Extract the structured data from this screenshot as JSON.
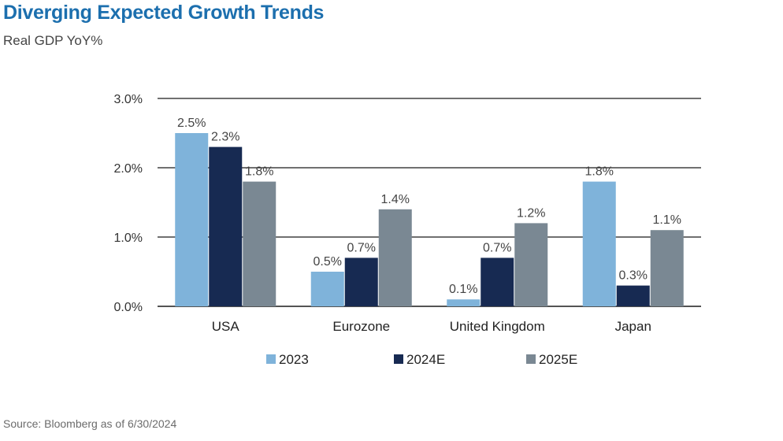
{
  "header": {
    "title": "Diverging Expected Growth Trends",
    "subtitle": "Real GDP YoY%"
  },
  "footer": {
    "source": "Source: Bloomberg as of 6/30/2024"
  },
  "chart_data": {
    "type": "bar",
    "title": "Diverging Expected Growth Trends",
    "subtitle": "Real GDP YoY%",
    "categories": [
      "USA",
      "Eurozone",
      "United Kingdom",
      "Japan"
    ],
    "series": [
      {
        "name": "2023",
        "color": "#7fb3da",
        "values": [
          2.5,
          0.5,
          0.1,
          1.8
        ],
        "labels": [
          "2.5%",
          "0.5%",
          "0.1%",
          "1.8%"
        ]
      },
      {
        "name": "2024E",
        "color": "#172a52",
        "values": [
          2.3,
          0.7,
          0.7,
          0.3
        ],
        "labels": [
          "2.3%",
          "0.7%",
          "0.7%",
          "0.3%"
        ]
      },
      {
        "name": "2025E",
        "color": "#7a8893",
        "values": [
          1.8,
          1.4,
          1.2,
          1.1
        ],
        "labels": [
          "1.8%",
          "1.4%",
          "1.2%",
          "1.1%"
        ]
      }
    ],
    "ylim": [
      0,
      3.0
    ],
    "yticks": [
      0,
      1.0,
      2.0,
      3.0
    ],
    "ytick_labels": [
      "0.0%",
      "1.0%",
      "2.0%",
      "3.0%"
    ],
    "grid": true,
    "legend_position": "bottom"
  }
}
